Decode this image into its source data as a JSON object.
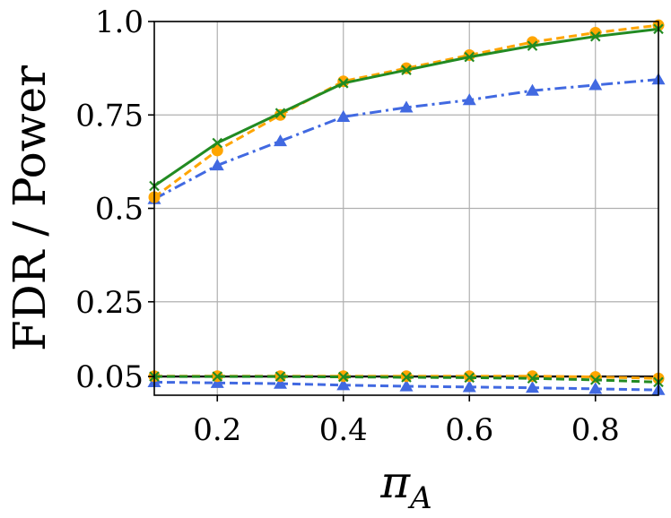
{
  "chart_data": {
    "type": "line",
    "title": "",
    "xlabel": "π",
    "xlabel_subscript": "A",
    "ylabel": "FDR / Power",
    "xlim": [
      0.1,
      0.9
    ],
    "ylim": [
      0.0,
      1.0
    ],
    "xticks": [
      0.2,
      0.4,
      0.6,
      0.8
    ],
    "xtick_labels": [
      "0.2",
      "0.4",
      "0.6",
      "0.8"
    ],
    "yticks": [
      0.05,
      0.25,
      0.5,
      0.75,
      1.0
    ],
    "ytick_labels": [
      "0.05",
      "0.25",
      "0.5",
      "0.75",
      "1.0"
    ],
    "grid": true,
    "reference_line": 0.05,
    "x": [
      0.1,
      0.2,
      0.3,
      0.4,
      0.5,
      0.6,
      0.7,
      0.8,
      0.9
    ],
    "series": [
      {
        "metric": "power",
        "color": "#228B22",
        "dash": "solid",
        "marker": "x",
        "values": [
          0.56,
          0.675,
          0.755,
          0.835,
          0.87,
          0.905,
          0.935,
          0.96,
          0.98
        ]
      },
      {
        "metric": "power",
        "color": "#FFA500",
        "dash": "dashed",
        "marker": "circle",
        "values": [
          0.53,
          0.655,
          0.75,
          0.84,
          0.875,
          0.91,
          0.945,
          0.97,
          0.99
        ]
      },
      {
        "metric": "power",
        "color": "#4169E1",
        "dash": "dashdot",
        "marker": "triangle",
        "values": [
          0.525,
          0.615,
          0.68,
          0.745,
          0.77,
          0.79,
          0.815,
          0.83,
          0.845
        ]
      },
      {
        "metric": "fdr",
        "color": "#228B22",
        "dash": "dashed",
        "marker": "x",
        "values": [
          0.05,
          0.05,
          0.05,
          0.049,
          0.048,
          0.047,
          0.045,
          0.041,
          0.035
        ]
      },
      {
        "metric": "fdr",
        "color": "#FFA500",
        "dash": "dashed",
        "marker": "circle",
        "values": [
          0.051,
          0.051,
          0.051,
          0.051,
          0.051,
          0.051,
          0.051,
          0.049,
          0.045
        ]
      },
      {
        "metric": "fdr",
        "color": "#4169E1",
        "dash": "dashed",
        "marker": "triangle",
        "values": [
          0.035,
          0.033,
          0.031,
          0.027,
          0.024,
          0.022,
          0.02,
          0.017,
          0.014
        ]
      }
    ]
  }
}
